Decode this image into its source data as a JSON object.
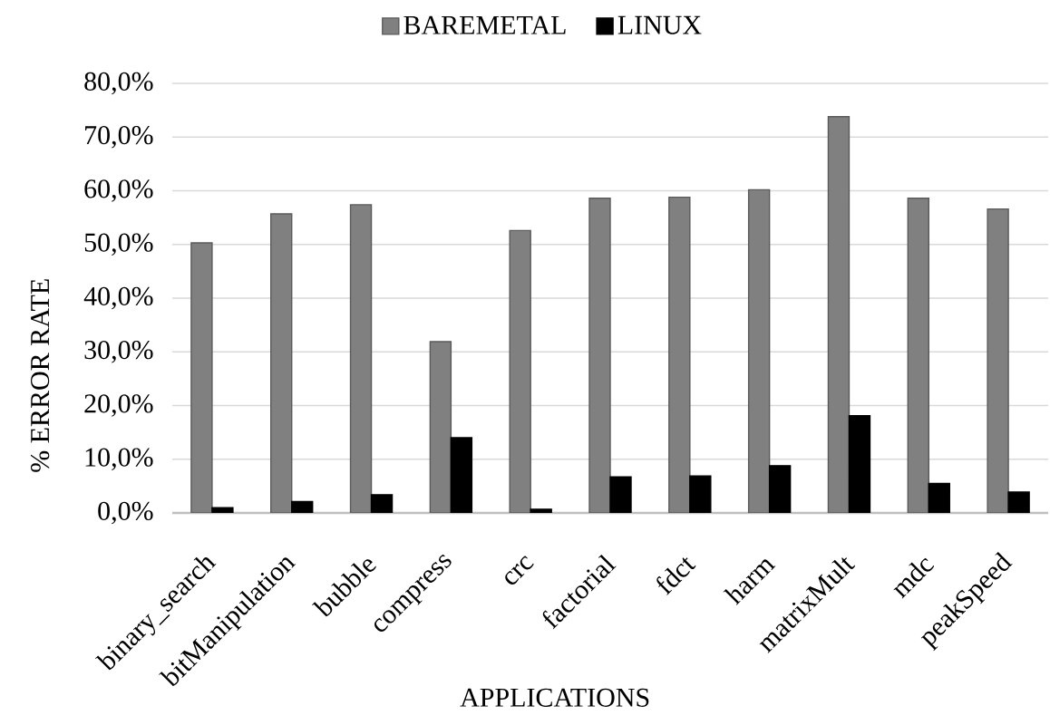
{
  "chart_data": {
    "type": "bar",
    "xlabel": "APPLICATIONS",
    "ylabel": "% ERROR RATE",
    "categories": [
      "binary_search",
      "bitManipulation",
      "bubble",
      "compress",
      "crc",
      "factorial",
      "fdct",
      "harm",
      "matrixMult",
      "mdc",
      "peakSpeed"
    ],
    "series": [
      {
        "name": "BAREMETAL",
        "color": "#808080",
        "values": [
          50.3,
          55.7,
          57.4,
          31.9,
          52.6,
          58.6,
          58.8,
          60.2,
          73.8,
          58.6,
          56.6
        ]
      },
      {
        "name": "LINUX",
        "color": "#000000",
        "values": [
          1.0,
          2.1,
          3.4,
          14.0,
          0.7,
          6.7,
          6.9,
          8.8,
          18.1,
          5.5,
          3.9
        ]
      }
    ],
    "ylim": [
      0,
      80
    ],
    "yticks": [
      {
        "value": 0,
        "label": "0,0%"
      },
      {
        "value": 10,
        "label": "10,0%"
      },
      {
        "value": 20,
        "label": "20,0%"
      },
      {
        "value": 30,
        "label": "30,0%"
      },
      {
        "value": 40,
        "label": "40,0%"
      },
      {
        "value": 50,
        "label": "50,0%"
      },
      {
        "value": 60,
        "label": "60,0%"
      },
      {
        "value": 70,
        "label": "70,0%"
      },
      {
        "value": 80,
        "label": "80,0%"
      }
    ],
    "grid": "y",
    "legend": "top"
  }
}
